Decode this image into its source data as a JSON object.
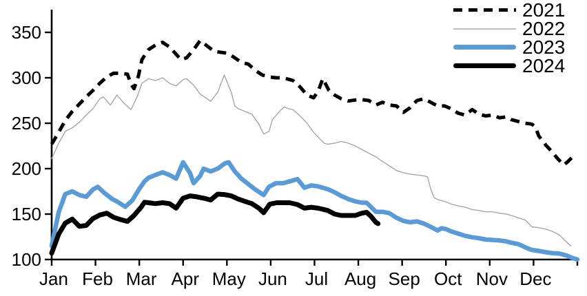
{
  "legend": {
    "position": "top-right",
    "items": [
      {
        "label": "2021",
        "swatch": "dashed-black-line"
      },
      {
        "label": "2022",
        "swatch": "thin-gray-line"
      },
      {
        "label": "2023",
        "swatch": "thick-blue-line"
      },
      {
        "label": "2024",
        "swatch": "thick-black-line"
      }
    ]
  },
  "chart_data": {
    "type": "line",
    "title": "",
    "xlabel": "",
    "ylabel": "",
    "grid": false,
    "legend_position": "top-right",
    "x_axis": {
      "categories": [
        "Jan",
        "Feb",
        "Mar",
        "Apr",
        "May",
        "Jun",
        "Jul",
        "Aug",
        "Sep",
        "Oct",
        "Nov",
        "Dec"
      ],
      "unit": "month position, 0 = start of Jan, 12 = end of Dec; series points sampled roughly weekly"
    },
    "y_axis": {
      "ticks": [
        100,
        150,
        200,
        250,
        300,
        350
      ],
      "range": [
        100,
        375
      ]
    },
    "series": [
      {
        "name": "2021",
        "color": "#000000",
        "line_style": "dashed",
        "line_width": 5,
        "points": [
          [
            0,
            227
          ],
          [
            0.16,
            240
          ],
          [
            0.31,
            253
          ],
          [
            0.47,
            263
          ],
          [
            0.63,
            271
          ],
          [
            0.79,
            279
          ],
          [
            0.94,
            286
          ],
          [
            1.1,
            294
          ],
          [
            1.26,
            301
          ],
          [
            1.41,
            305
          ],
          [
            1.57,
            305
          ],
          [
            1.73,
            304
          ],
          [
            1.81,
            293
          ],
          [
            1.88,
            288
          ],
          [
            1.98,
            302
          ],
          [
            2.06,
            320
          ],
          [
            2.21,
            331
          ],
          [
            2.37,
            336
          ],
          [
            2.53,
            339
          ],
          [
            2.69,
            334
          ],
          [
            2.84,
            326
          ],
          [
            2.95,
            320
          ],
          [
            3.08,
            322
          ],
          [
            3.24,
            331
          ],
          [
            3.39,
            341
          ],
          [
            3.55,
            335
          ],
          [
            3.71,
            329
          ],
          [
            3.86,
            328
          ],
          [
            4.02,
            327
          ],
          [
            4.18,
            322
          ],
          [
            4.33,
            317
          ],
          [
            4.49,
            315
          ],
          [
            4.65,
            308
          ],
          [
            4.81,
            303
          ],
          [
            4.96,
            301
          ],
          [
            5.12,
            300
          ],
          [
            5.28,
            300
          ],
          [
            5.43,
            298
          ],
          [
            5.51,
            297
          ],
          [
            5.67,
            290
          ],
          [
            5.83,
            281
          ],
          [
            5.98,
            278
          ],
          [
            6.08,
            285
          ],
          [
            6.19,
            299
          ],
          [
            6.33,
            286
          ],
          [
            6.46,
            281
          ],
          [
            6.61,
            277
          ],
          [
            6.77,
            274.5
          ],
          [
            6.93,
            275.5
          ],
          [
            7.08,
            276
          ],
          [
            7.24,
            275
          ],
          [
            7.4,
            270
          ],
          [
            7.55,
            273
          ],
          [
            7.71,
            270
          ],
          [
            7.87,
            269
          ],
          [
            8.03,
            262
          ],
          [
            8.18,
            267
          ],
          [
            8.34,
            275
          ],
          [
            8.5,
            277
          ],
          [
            8.65,
            273
          ],
          [
            8.81,
            269
          ],
          [
            8.97,
            269
          ],
          [
            9.12,
            266
          ],
          [
            9.28,
            261
          ],
          [
            9.44,
            259
          ],
          [
            9.6,
            265
          ],
          [
            9.75,
            260
          ],
          [
            9.91,
            258
          ],
          [
            10.07,
            259
          ],
          [
            10.22,
            256
          ],
          [
            10.38,
            257
          ],
          [
            10.49,
            254
          ],
          [
            10.65,
            252
          ],
          [
            10.81,
            250
          ],
          [
            10.96,
            249
          ],
          [
            11.04,
            246
          ],
          [
            11.12,
            236
          ],
          [
            11.28,
            226
          ],
          [
            11.43,
            218
          ],
          [
            11.55,
            211
          ],
          [
            11.69,
            204
          ],
          [
            11.79,
            208
          ],
          [
            11.95,
            216
          ]
        ]
      },
      {
        "name": "2022",
        "color": "#A6A6A6",
        "line_style": "solid",
        "line_width": 1.4,
        "points": [
          [
            0,
            211
          ],
          [
            0.16,
            228
          ],
          [
            0.31,
            241
          ],
          [
            0.47,
            245
          ],
          [
            0.63,
            251
          ],
          [
            0.79,
            259
          ],
          [
            0.94,
            266
          ],
          [
            1.1,
            277
          ],
          [
            1.18,
            279
          ],
          [
            1.34,
            270
          ],
          [
            1.49,
            281
          ],
          [
            1.65,
            272
          ],
          [
            1.81,
            265
          ],
          [
            1.96,
            280
          ],
          [
            2.06,
            294
          ],
          [
            2.21,
            299
          ],
          [
            2.37,
            297
          ],
          [
            2.53,
            300
          ],
          [
            2.69,
            294
          ],
          [
            2.84,
            291
          ],
          [
            3.0,
            298
          ],
          [
            3.08,
            299
          ],
          [
            3.24,
            292
          ],
          [
            3.39,
            282
          ],
          [
            3.55,
            277
          ],
          [
            3.63,
            274
          ],
          [
            3.79,
            284
          ],
          [
            3.94,
            303
          ],
          [
            4.1,
            284
          ],
          [
            4.18,
            269
          ],
          [
            4.26,
            266
          ],
          [
            4.41,
            263
          ],
          [
            4.57,
            260
          ],
          [
            4.73,
            249
          ],
          [
            4.84,
            238
          ],
          [
            4.96,
            241
          ],
          [
            5.04,
            254
          ],
          [
            5.2,
            263
          ],
          [
            5.31,
            268
          ],
          [
            5.4,
            266
          ],
          [
            5.51,
            265
          ],
          [
            5.67,
            258
          ],
          [
            5.83,
            250
          ],
          [
            5.98,
            240
          ],
          [
            6.14,
            232
          ],
          [
            6.22,
            228
          ],
          [
            6.3,
            227
          ],
          [
            6.46,
            228
          ],
          [
            6.61,
            230
          ],
          [
            6.77,
            228
          ],
          [
            6.93,
            225
          ],
          [
            7.08,
            221
          ],
          [
            7.24,
            217
          ],
          [
            7.4,
            213
          ],
          [
            7.55,
            208
          ],
          [
            7.71,
            203
          ],
          [
            7.87,
            198
          ],
          [
            8.03,
            195.5
          ],
          [
            8.18,
            194
          ],
          [
            8.34,
            193
          ],
          [
            8.5,
            192
          ],
          [
            8.58,
            191
          ],
          [
            8.65,
            178
          ],
          [
            8.73,
            168
          ],
          [
            8.81,
            166
          ],
          [
            8.97,
            164
          ],
          [
            9.12,
            161
          ],
          [
            9.28,
            159
          ],
          [
            9.44,
            157.5
          ],
          [
            9.6,
            155
          ],
          [
            9.75,
            154
          ],
          [
            9.91,
            152.5
          ],
          [
            10.07,
            152.5
          ],
          [
            10.22,
            151
          ],
          [
            10.38,
            150
          ],
          [
            10.49,
            148.5
          ],
          [
            10.65,
            146
          ],
          [
            10.81,
            143.5
          ],
          [
            10.96,
            136
          ],
          [
            11.12,
            135
          ],
          [
            11.28,
            133.5
          ],
          [
            11.43,
            131
          ],
          [
            11.59,
            127
          ],
          [
            11.75,
            119.5
          ],
          [
            11.85,
            115
          ]
        ]
      },
      {
        "name": "2023",
        "color": "#5B9BD5",
        "line_style": "solid",
        "line_width": 6.5,
        "points": [
          [
            0,
            115
          ],
          [
            0.16,
            152
          ],
          [
            0.31,
            172
          ],
          [
            0.47,
            175
          ],
          [
            0.63,
            171
          ],
          [
            0.79,
            169
          ],
          [
            0.94,
            177
          ],
          [
            1.05,
            180
          ],
          [
            1.21,
            173
          ],
          [
            1.37,
            167
          ],
          [
            1.52,
            163
          ],
          [
            1.68,
            158
          ],
          [
            1.84,
            165
          ],
          [
            1.99,
            177
          ],
          [
            2.12,
            186
          ],
          [
            2.21,
            190
          ],
          [
            2.37,
            193
          ],
          [
            2.53,
            196
          ],
          [
            2.69,
            193
          ],
          [
            2.84,
            189
          ],
          [
            3.0,
            207
          ],
          [
            3.16,
            195
          ],
          [
            3.24,
            184
          ],
          [
            3.39,
            192
          ],
          [
            3.47,
            200
          ],
          [
            3.63,
            197
          ],
          [
            3.79,
            200
          ],
          [
            3.96,
            206
          ],
          [
            4.04,
            207
          ],
          [
            4.18,
            197
          ],
          [
            4.33,
            189
          ],
          [
            4.49,
            183
          ],
          [
            4.65,
            177
          ],
          [
            4.84,
            171
          ],
          [
            4.96,
            180
          ],
          [
            5.12,
            184
          ],
          [
            5.28,
            184
          ],
          [
            5.43,
            186
          ],
          [
            5.61,
            188.5
          ],
          [
            5.77,
            179
          ],
          [
            5.92,
            181.5
          ],
          [
            6.08,
            180.5
          ],
          [
            6.3,
            177.5
          ],
          [
            6.46,
            174
          ],
          [
            6.61,
            170
          ],
          [
            6.77,
            166.5
          ],
          [
            6.93,
            164
          ],
          [
            7.08,
            162.5
          ],
          [
            7.19,
            162.5
          ],
          [
            7.4,
            152.5
          ],
          [
            7.55,
            152.5
          ],
          [
            7.71,
            151
          ],
          [
            7.87,
            146
          ],
          [
            8.03,
            142.5
          ],
          [
            8.18,
            141
          ],
          [
            8.34,
            142
          ],
          [
            8.5,
            139.5
          ],
          [
            8.65,
            136
          ],
          [
            8.81,
            132
          ],
          [
            8.9,
            134.5
          ],
          [
            9.0,
            133.5
          ],
          [
            9.12,
            131
          ],
          [
            9.28,
            128.5
          ],
          [
            9.44,
            126
          ],
          [
            9.6,
            124.5
          ],
          [
            9.75,
            123.5
          ],
          [
            9.91,
            122
          ],
          [
            10.07,
            121.5
          ],
          [
            10.22,
            121
          ],
          [
            10.38,
            120
          ],
          [
            10.49,
            118.5
          ],
          [
            10.65,
            117
          ],
          [
            10.81,
            113.5
          ],
          [
            10.96,
            110.5
          ],
          [
            11.12,
            109.5
          ],
          [
            11.28,
            108
          ],
          [
            11.43,
            107
          ],
          [
            11.59,
            106.5
          ],
          [
            11.75,
            104.5
          ],
          [
            11.87,
            102
          ],
          [
            12.0,
            100
          ]
        ]
      },
      {
        "name": "2024",
        "color": "#000000",
        "line_style": "solid",
        "line_width": 7,
        "points": [
          [
            0,
            107
          ],
          [
            0.16,
            128
          ],
          [
            0.31,
            140
          ],
          [
            0.47,
            144.5
          ],
          [
            0.63,
            136.5
          ],
          [
            0.79,
            137.5
          ],
          [
            0.94,
            145
          ],
          [
            1.1,
            149
          ],
          [
            1.26,
            151
          ],
          [
            1.41,
            146.5
          ],
          [
            1.57,
            144
          ],
          [
            1.73,
            142
          ],
          [
            1.88,
            148.5
          ],
          [
            2.04,
            157.5
          ],
          [
            2.12,
            163
          ],
          [
            2.21,
            162.5
          ],
          [
            2.37,
            161.5
          ],
          [
            2.53,
            162.5
          ],
          [
            2.69,
            161.5
          ],
          [
            2.84,
            156.5
          ],
          [
            3.0,
            167.5
          ],
          [
            3.16,
            170
          ],
          [
            3.31,
            169
          ],
          [
            3.47,
            167.5
          ],
          [
            3.63,
            165.5
          ],
          [
            3.79,
            172
          ],
          [
            3.94,
            171.5
          ],
          [
            4.1,
            170
          ],
          [
            4.26,
            166.5
          ],
          [
            4.41,
            164
          ],
          [
            4.57,
            161.5
          ],
          [
            4.73,
            156.5
          ],
          [
            4.84,
            151.5
          ],
          [
            4.98,
            161
          ],
          [
            5.14,
            162.5
          ],
          [
            5.28,
            162.5
          ],
          [
            5.43,
            162.5
          ],
          [
            5.61,
            160.5
          ],
          [
            5.77,
            156.5
          ],
          [
            5.92,
            157.5
          ],
          [
            6.08,
            156.5
          ],
          [
            6.3,
            154
          ],
          [
            6.46,
            150
          ],
          [
            6.61,
            148.5
          ],
          [
            6.77,
            148.5
          ],
          [
            6.93,
            148.5
          ],
          [
            7.08,
            151
          ],
          [
            7.19,
            152
          ],
          [
            7.29,
            147.5
          ],
          [
            7.4,
            141
          ],
          [
            7.45,
            139.5
          ]
        ]
      }
    ]
  }
}
